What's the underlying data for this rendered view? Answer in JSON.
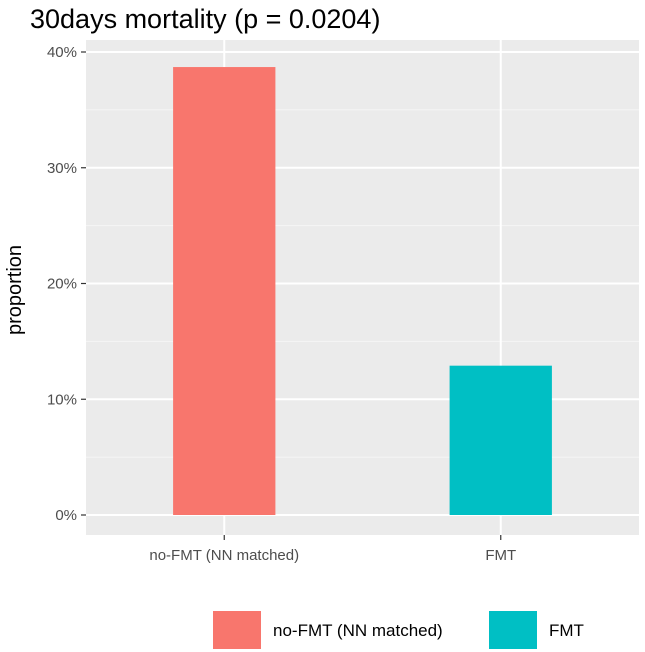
{
  "chart_data": {
    "type": "bar",
    "title": "30days mortality (p = 0.0204)",
    "xlabel": "",
    "ylabel": "proportion",
    "categories": [
      "no-FMT (NN matched)",
      "FMT"
    ],
    "values": [
      0.387,
      0.129
    ],
    "ylim": [
      0,
      0.4
    ],
    "yticks": [
      0,
      0.1,
      0.2,
      0.3,
      0.4
    ],
    "ytick_labels": [
      "0%",
      "10%",
      "20%",
      "30%",
      "40%"
    ],
    "colors": [
      "#F8766D",
      "#00BFC4"
    ],
    "grid": true,
    "legend": {
      "position": "bottom",
      "entries": [
        "no-FMT (NN matched)",
        "FMT"
      ]
    }
  }
}
